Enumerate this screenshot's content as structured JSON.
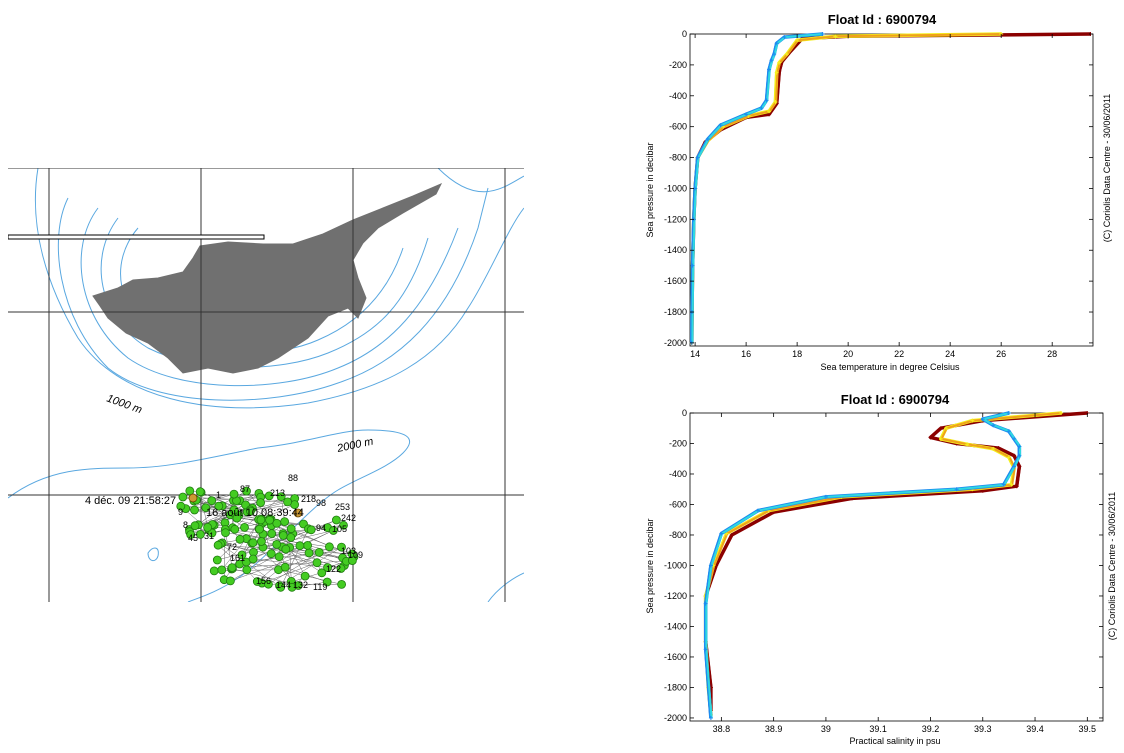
{
  "map": {
    "contour_labels": [
      "1000 m",
      "2000 m"
    ],
    "date_labels": [
      "4 déc. 09 21:58:27",
      "16 août 10 08:39:44"
    ],
    "profile_numbers": [
      "88",
      "87",
      "213",
      "218",
      "98",
      "253",
      "242",
      "105",
      "94",
      "103",
      "109",
      "122",
      "119",
      "156",
      "144",
      "132",
      "161",
      "72",
      "45",
      "31",
      "9",
      "8",
      "1"
    ],
    "colors": {
      "contour": "#5aa8e0",
      "land": "#707070",
      "grid": "#333333",
      "marker": "#44cc22",
      "marker_edge": "#1f7a10"
    }
  },
  "chart_data": [
    {
      "type": "line",
      "title": "Float Id : 6900794",
      "xlabel": "Sea temperature in degree Celsius",
      "ylabel": "Sea pressure in decibar",
      "credit": "(C) Coriolis Data Centre - 30/06/2011",
      "xlim": [
        13.8,
        29.6
      ],
      "ylim": [
        -2020,
        0
      ],
      "xticks": [
        "14",
        "16",
        "18",
        "20",
        "22",
        "24",
        "26",
        "28"
      ],
      "yticks": [
        "0",
        "-200",
        "-400",
        "-600",
        "-800",
        "-1000",
        "-1200",
        "-1400",
        "-1600",
        "-1800",
        "-2000"
      ],
      "series_colors": [
        "#1c2fd8",
        "#1c8cf0",
        "#2fd8e0",
        "#f4f01c",
        "#f0a01c",
        "#d02020",
        "#8b0000"
      ],
      "series": [
        {
          "color": "#8b0000",
          "x": [
            29.5,
            20.0,
            18.2,
            17.7,
            17.4,
            17.3,
            17.2,
            16.9,
            16.0,
            15.0,
            14.4,
            14.1,
            14.0,
            13.95,
            13.9,
            13.88,
            13.87
          ],
          "y": [
            0,
            -15,
            -30,
            -120,
            -180,
            -240,
            -450,
            -520,
            -540,
            -620,
            -700,
            -800,
            -1000,
            -1200,
            -1500,
            -1800,
            -2000
          ]
        },
        {
          "color": "#f4f01c",
          "x": [
            26.0,
            19.5,
            18.0,
            17.6,
            17.3,
            17.2,
            17.15,
            16.9,
            16.1,
            15.1,
            14.5,
            14.1,
            14.0,
            13.95,
            13.9,
            13.88,
            13.87
          ],
          "y": [
            0,
            -15,
            -40,
            -130,
            -185,
            -250,
            -440,
            -500,
            -530,
            -600,
            -690,
            -800,
            -1000,
            -1200,
            -1500,
            -1800,
            -2000
          ]
        },
        {
          "color": "#1c8cf0",
          "x": [
            19.0,
            17.5,
            17.2,
            17.1,
            17.0,
            16.9,
            16.8,
            16.6,
            16.0,
            15.0,
            14.5,
            14.1,
            14.0,
            13.95,
            13.9,
            13.88,
            13.87
          ],
          "y": [
            0,
            -20,
            -60,
            -130,
            -170,
            -230,
            -430,
            -480,
            -520,
            -590,
            -680,
            -800,
            -1000,
            -1200,
            -1500,
            -1800,
            -2000
          ]
        }
      ]
    },
    {
      "type": "line",
      "title": "Float Id : 6900794",
      "xlabel": "Practical salinity in psu",
      "ylabel": "Sea pressure in decibar",
      "credit": "(C) Coriolis Data Centre - 30/06/2011",
      "xlim": [
        38.74,
        39.53
      ],
      "ylim": [
        -2020,
        0
      ],
      "xticks": [
        "38.8",
        "38.9",
        "39",
        "39.1",
        "39.2",
        "39.3",
        "39.4",
        "39.5"
      ],
      "yticks": [
        "0",
        "-200",
        "-400",
        "-600",
        "-800",
        "-1000",
        "-1200",
        "-1400",
        "-1600",
        "-1800",
        "-2000"
      ],
      "series_colors": [
        "#1c2fd8",
        "#1c8cf0",
        "#2fd8e0",
        "#f4f01c",
        "#f0a01c",
        "#d02020",
        "#8b0000"
      ],
      "series": [
        {
          "color": "#8b0000",
          "x": [
            39.5,
            39.3,
            39.22,
            39.2,
            39.25,
            39.33,
            39.36,
            39.37,
            39.365,
            39.3,
            39.05,
            38.9,
            38.82,
            38.79,
            38.77,
            38.77,
            38.78,
            38.78
          ],
          "y": [
            0,
            -50,
            -100,
            -160,
            -200,
            -230,
            -280,
            -350,
            -480,
            -510,
            -560,
            -650,
            -800,
            -1000,
            -1200,
            -1500,
            -1800,
            -1950
          ]
        },
        {
          "color": "#f4f01c",
          "x": [
            39.45,
            39.28,
            39.23,
            39.22,
            39.27,
            39.32,
            39.35,
            39.36,
            39.355,
            39.28,
            39.03,
            38.89,
            38.81,
            38.785,
            38.77,
            38.77,
            38.775,
            38.78
          ],
          "y": [
            0,
            -50,
            -100,
            -170,
            -205,
            -235,
            -290,
            -360,
            -470,
            -500,
            -550,
            -640,
            -790,
            -1000,
            -1200,
            -1500,
            -1800,
            -1980
          ]
        },
        {
          "color": "#1c8cf0",
          "x": [
            39.35,
            39.3,
            39.32,
            39.35,
            39.36,
            39.37,
            39.37,
            39.36,
            39.34,
            39.25,
            39.0,
            38.87,
            38.8,
            38.78,
            38.77,
            38.77,
            38.78
          ],
          "y": [
            0,
            -40,
            -80,
            -120,
            -170,
            -220,
            -280,
            -350,
            -470,
            -500,
            -550,
            -640,
            -790,
            -1000,
            -1250,
            -1550,
            -2000
          ]
        }
      ]
    }
  ]
}
